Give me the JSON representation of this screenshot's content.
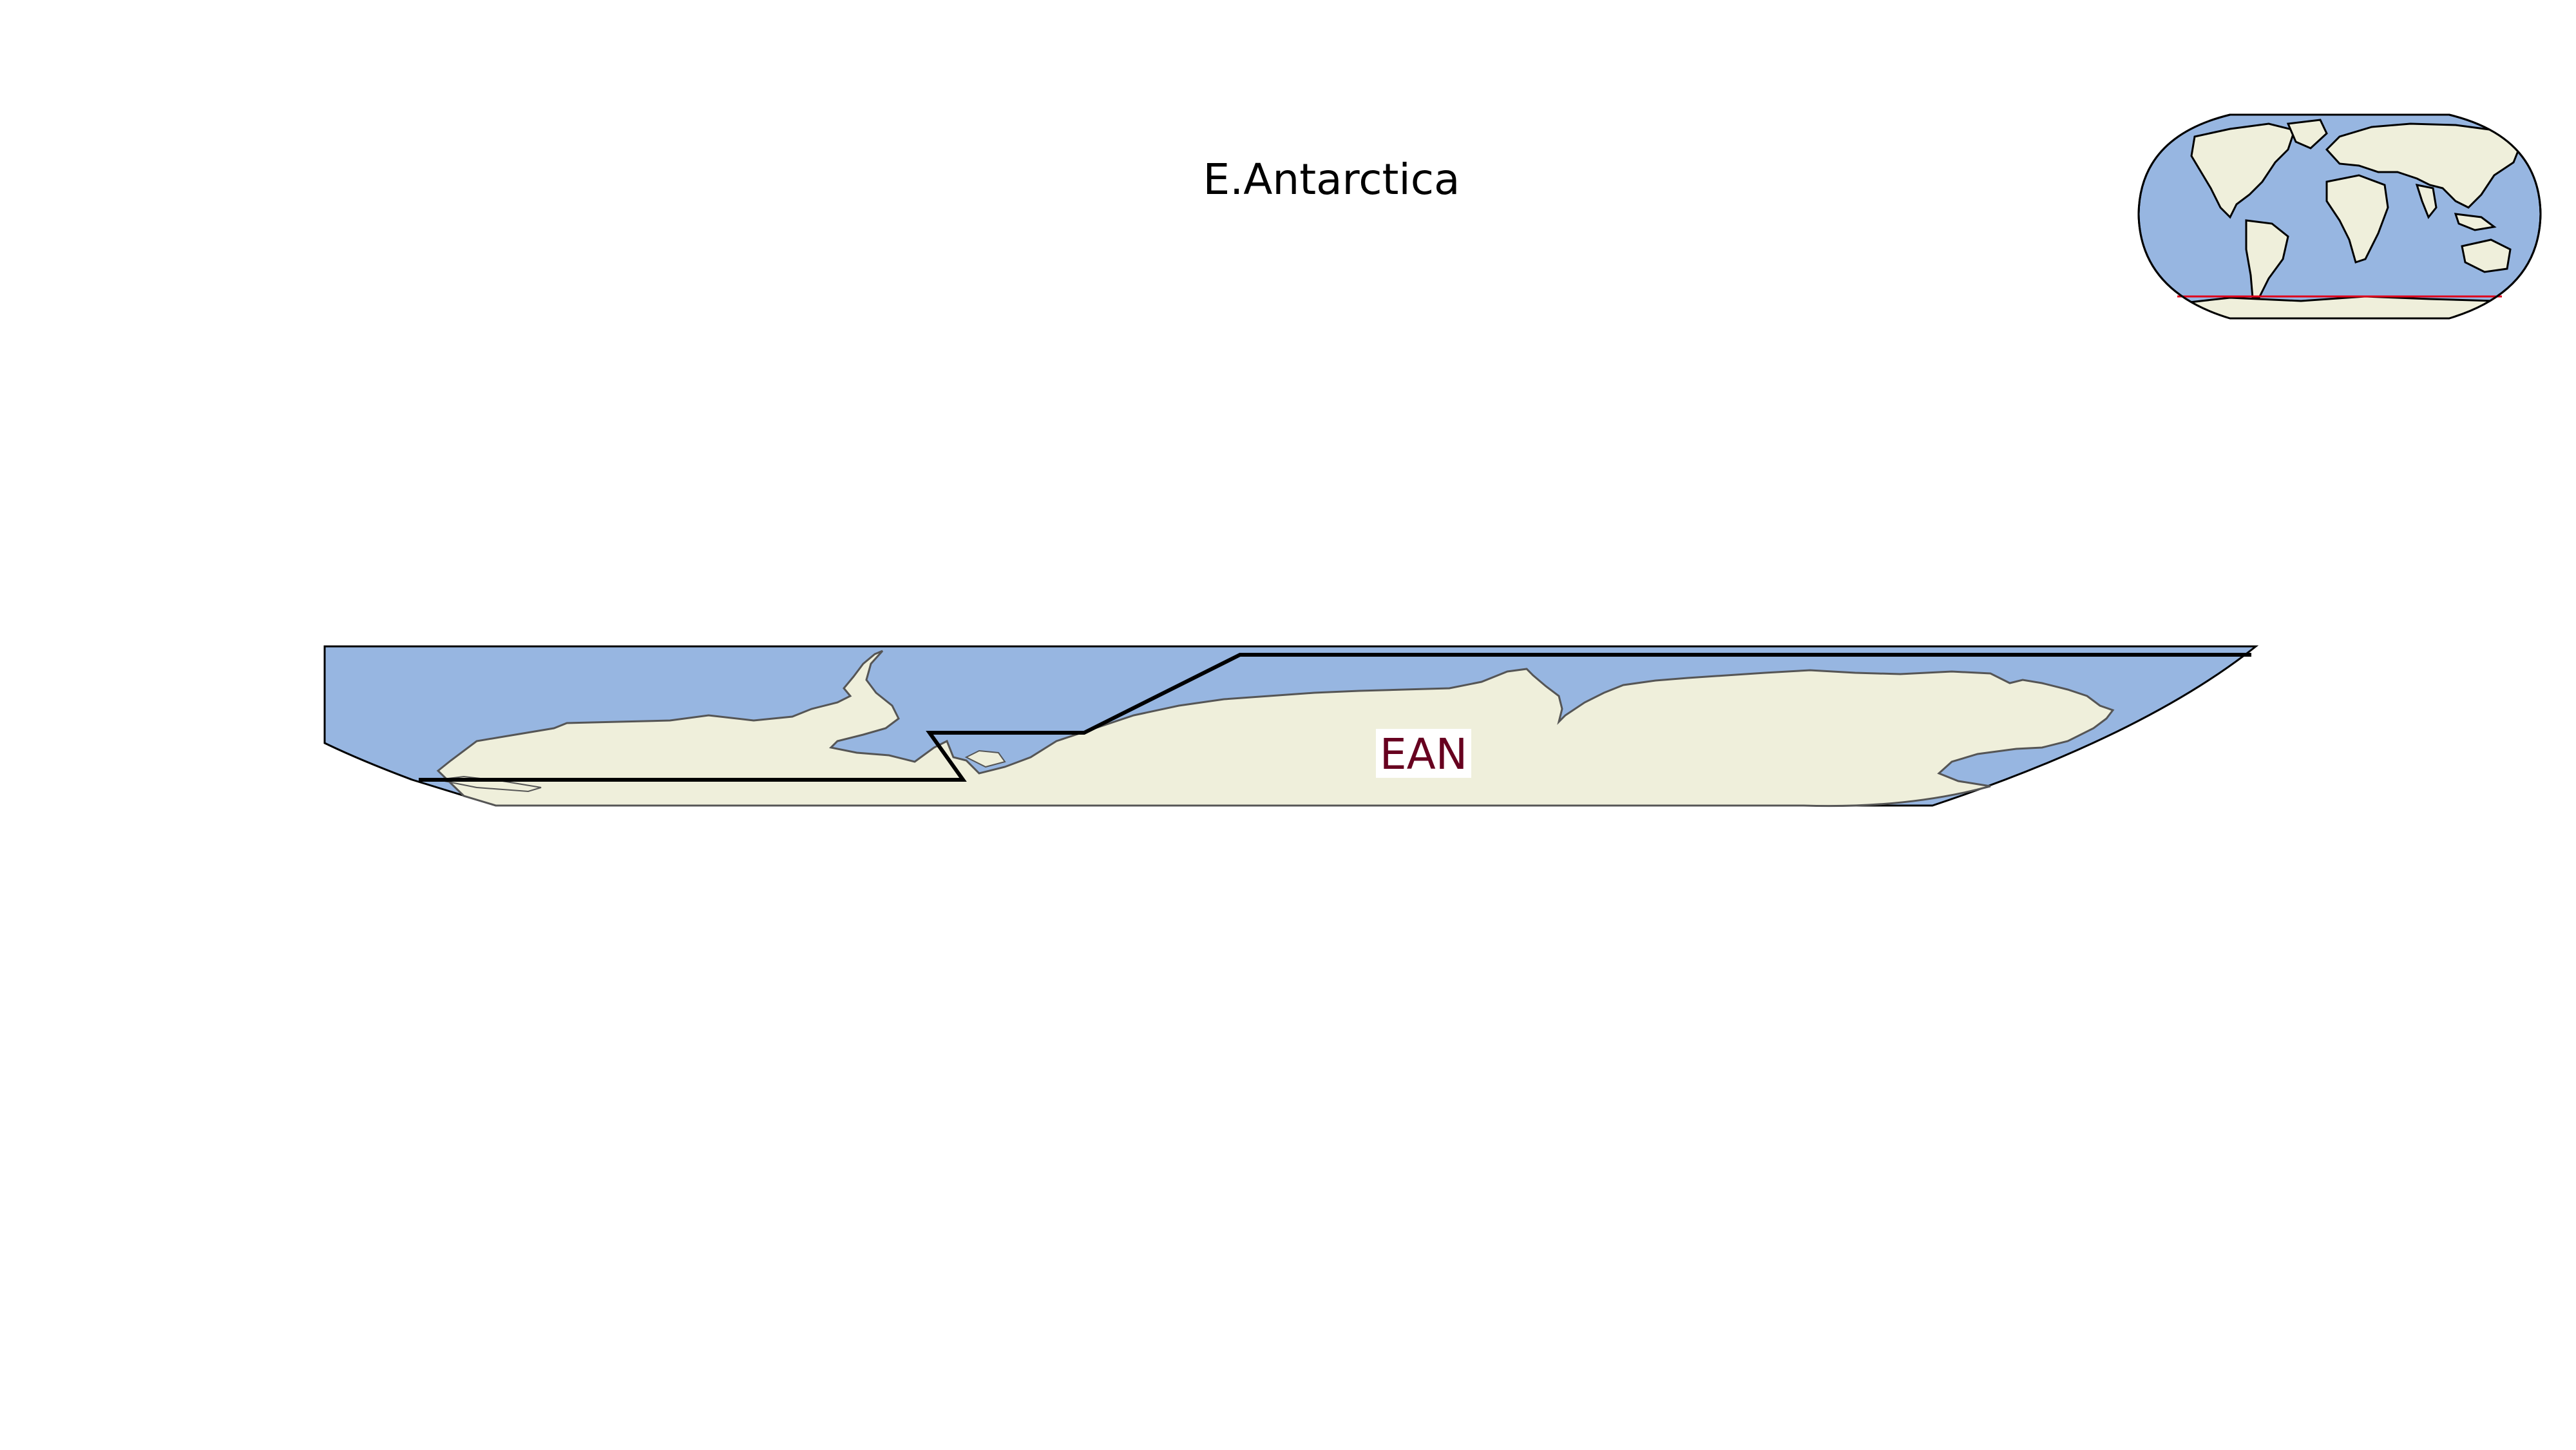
{
  "title": "E.Antarctica",
  "region": {
    "label": "EAN"
  },
  "colors": {
    "ocean": "#97b6e1",
    "land": "#efefdb",
    "region_outline": "#000000",
    "region_label": "#67001f",
    "inset_latitude_line": "#e0001a"
  },
  "inset": {
    "type": "world-overview-robinson"
  }
}
